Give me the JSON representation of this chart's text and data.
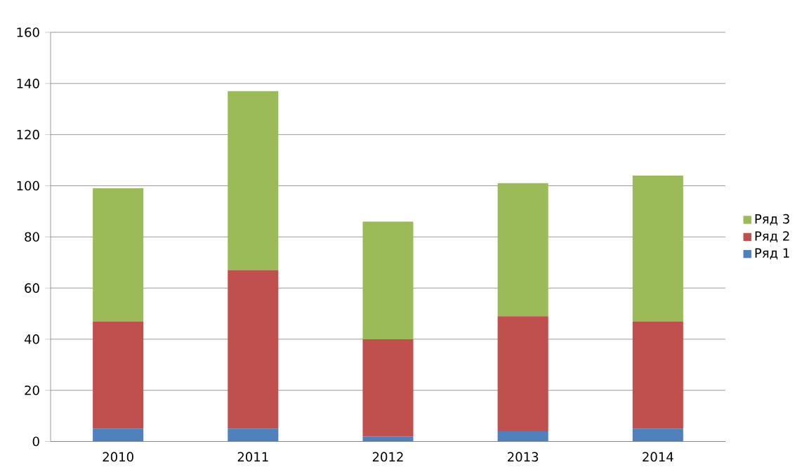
{
  "chart_data": {
    "type": "bar",
    "stacked": true,
    "categories": [
      "2010",
      "2011",
      "2012",
      "2013",
      "2014"
    ],
    "series": [
      {
        "name": "Ряд 1",
        "color": "#4f81bd",
        "values": [
          5,
          5,
          2,
          4,
          5
        ]
      },
      {
        "name": "Ряд 2",
        "color": "#c0504d",
        "values": [
          42,
          62,
          38,
          45,
          42
        ]
      },
      {
        "name": "Ряд 3",
        "color": "#9bbb59",
        "values": [
          52,
          70,
          46,
          52,
          57
        ]
      }
    ],
    "ylim": [
      0,
      160
    ],
    "yticks": [
      0,
      20,
      40,
      60,
      80,
      100,
      120,
      140,
      160
    ],
    "grid": "y",
    "legend": "right"
  }
}
